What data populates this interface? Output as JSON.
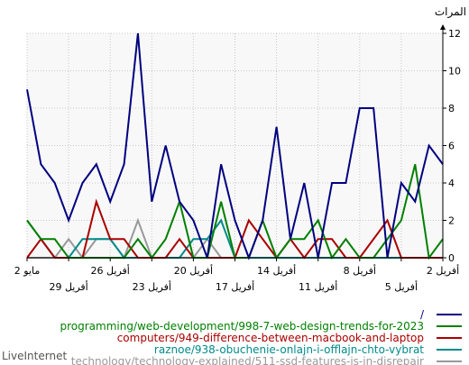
{
  "chart_data": {
    "type": "line",
    "ylabel": "المرات",
    "ylim": [
      0,
      12
    ],
    "yticks": [
      0,
      2,
      4,
      6,
      8,
      10,
      12
    ],
    "grid": true,
    "legend_placement": "bottom",
    "footer": "LiveInternet",
    "x_top_labels": [
      "2 مايو",
      "26 أفريل",
      "20 أفريل",
      "14 أفريل",
      "8 أفريل",
      "2 أفريل"
    ],
    "x_bottom_labels": [
      "29 أفريل",
      "23 أفريل",
      "17 أفريل",
      "11 أفريل",
      "5 أفريل"
    ],
    "series": [
      {
        "name": "/",
        "color": "#000080",
        "values": [
          5,
          6,
          3,
          4,
          0,
          8,
          8,
          4,
          4,
          0,
          4,
          1,
          7,
          2,
          0,
          2,
          5,
          0,
          2,
          3,
          6,
          3,
          12,
          5,
          3,
          5,
          4,
          2,
          4,
          5,
          9
        ]
      },
      {
        "name": "programming/web-development/998-7-web-design-trends-for-2023",
        "color": "#008000",
        "values": [
          1,
          0,
          5,
          2,
          1,
          0,
          0,
          1,
          0,
          2,
          1,
          1,
          0,
          2,
          0,
          0,
          3,
          0,
          0,
          3,
          1,
          0,
          1,
          0,
          0,
          0,
          0,
          0,
          1,
          1,
          2
        ]
      },
      {
        "name": "computers/949-difference-between-macbook-and-laptop",
        "color": "#aa0000",
        "values": [
          0,
          0,
          0,
          0,
          2,
          1,
          0,
          0,
          1,
          1,
          0,
          1,
          0,
          1,
          2,
          0,
          0,
          0,
          0,
          1,
          0,
          0,
          0,
          1,
          1,
          3,
          0,
          0,
          0,
          1,
          0
        ]
      },
      {
        "name": "raznoe/938-obuchenie-onlajn-i-offlajn-chto-vybrat",
        "color": "#008b8b",
        "values": [
          0,
          0,
          0,
          0,
          0,
          0,
          0,
          0,
          0,
          0,
          0,
          0,
          0,
          0,
          0,
          0,
          2,
          1,
          1,
          0,
          0,
          0,
          0,
          0,
          1,
          1,
          1,
          0,
          0,
          1,
          2
        ]
      },
      {
        "name": "technology/technology-explained/511-ssd-features-is-in-disrepair",
        "color": "#999999",
        "values": [
          0,
          0,
          0,
          0,
          0,
          0,
          0,
          0,
          0,
          0,
          0,
          0,
          0,
          0,
          0,
          0,
          0,
          1,
          0,
          0,
          0,
          0,
          2,
          0,
          1,
          1,
          0,
          1,
          0,
          0,
          0
        ]
      }
    ]
  }
}
